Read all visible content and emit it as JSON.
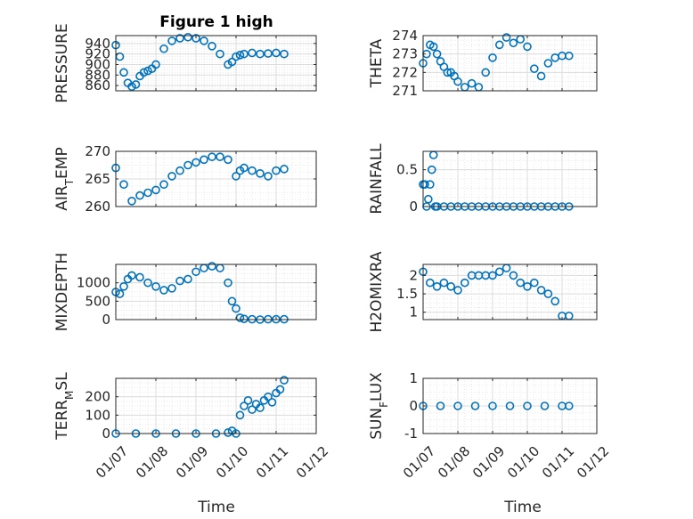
{
  "figure": {
    "title": "Figure 1 high",
    "marker_color": "#0072bd",
    "xlabel": "Time"
  },
  "chart_data": [
    {
      "type": "scatter",
      "ylabel": "PRESSURE",
      "ylim": [
        850,
        955
      ],
      "yticks": [
        860,
        880,
        900,
        920,
        940
      ],
      "xlim": [
        0,
        5
      ],
      "xtick_labels": [
        "01/07",
        "01/08",
        "01/09",
        "01/10",
        "01/11",
        "01/12"
      ],
      "x": [
        0,
        0.1,
        0.2,
        0.3,
        0.4,
        0.5,
        0.6,
        0.7,
        0.8,
        0.9,
        1.0,
        1.2,
        1.4,
        1.6,
        1.8,
        2.0,
        2.2,
        2.4,
        2.6,
        2.8,
        2.9,
        3.0,
        3.1,
        3.2,
        3.4,
        3.6,
        3.8,
        4.0,
        4.2
      ],
      "values": [
        937,
        915,
        885,
        865,
        858,
        862,
        878,
        885,
        888,
        892,
        900,
        930,
        945,
        950,
        952,
        950,
        945,
        935,
        920,
        900,
        905,
        915,
        918,
        920,
        922,
        920,
        921,
        922,
        920
      ]
    },
    {
      "type": "scatter",
      "ylabel": "THETA",
      "ylim": [
        271,
        274
      ],
      "yticks": [
        271,
        272,
        273,
        274
      ],
      "xlim": [
        0,
        5
      ],
      "xtick_labels": [
        "01/07",
        "01/08",
        "01/09",
        "01/10",
        "01/11",
        "01/12"
      ],
      "x": [
        0,
        0.1,
        0.2,
        0.3,
        0.4,
        0.5,
        0.6,
        0.7,
        0.8,
        0.9,
        1.0,
        1.2,
        1.4,
        1.6,
        1.8,
        2.0,
        2.2,
        2.4,
        2.6,
        2.8,
        3.0,
        3.2,
        3.4,
        3.6,
        3.8,
        4.0,
        4.2
      ],
      "values": [
        272.5,
        273.0,
        273.5,
        273.4,
        273.0,
        272.6,
        272.3,
        272.0,
        272.0,
        271.8,
        271.5,
        271.2,
        271.4,
        271.2,
        272.0,
        272.8,
        273.5,
        273.9,
        273.6,
        273.8,
        273.4,
        272.2,
        271.8,
        272.5,
        272.8,
        272.9,
        272.9
      ]
    },
    {
      "type": "scatter",
      "ylabel": "AIR_TEMP",
      "ylim": [
        260,
        270
      ],
      "yticks": [
        260,
        265,
        270
      ],
      "xlim": [
        0,
        5
      ],
      "xtick_labels": [
        "01/07",
        "01/08",
        "01/09",
        "01/10",
        "01/11",
        "01/12"
      ],
      "x": [
        0,
        0.2,
        0.4,
        0.6,
        0.8,
        1.0,
        1.2,
        1.4,
        1.6,
        1.8,
        2.0,
        2.2,
        2.4,
        2.6,
        2.8,
        3.0,
        3.1,
        3.2,
        3.4,
        3.6,
        3.8,
        4.0,
        4.2
      ],
      "values": [
        267,
        264,
        261,
        262,
        262.5,
        263,
        264,
        265.5,
        266.5,
        267.5,
        268,
        268.5,
        269,
        269,
        268.5,
        265.5,
        266.5,
        267,
        266.5,
        266,
        265.5,
        266.5,
        266.8
      ]
    },
    {
      "type": "scatter",
      "ylabel": "RAINFALL",
      "ylim": [
        0,
        0.75
      ],
      "yticks": [
        0,
        0.5
      ],
      "xlim": [
        0,
        5
      ],
      "xtick_labels": [
        "01/07",
        "01/08",
        "01/09",
        "01/10",
        "01/11",
        "01/12"
      ],
      "x": [
        0,
        0.05,
        0.1,
        0.15,
        0.2,
        0.25,
        0.3,
        0.35,
        0.4,
        0.6,
        0.8,
        1.0,
        1.2,
        1.4,
        1.6,
        1.8,
        2.0,
        2.2,
        2.4,
        2.6,
        2.8,
        3.0,
        3.2,
        3.4,
        3.6,
        3.8,
        4.0,
        4.2
      ],
      "values": [
        0.3,
        0.3,
        0.0,
        0.1,
        0.3,
        0.5,
        0.7,
        0.0,
        0.0,
        0,
        0,
        0,
        0,
        0,
        0,
        0,
        0,
        0,
        0,
        0,
        0,
        0,
        0,
        0,
        0,
        0,
        0,
        0
      ]
    },
    {
      "type": "scatter",
      "ylabel": "MIXDEPTH",
      "ylim": [
        0,
        1500
      ],
      "yticks": [
        0,
        500,
        1000
      ],
      "xlim": [
        0,
        5
      ],
      "xtick_labels": [
        "01/07",
        "01/08",
        "01/09",
        "01/10",
        "01/11",
        "01/12"
      ],
      "x": [
        0,
        0.1,
        0.2,
        0.3,
        0.4,
        0.6,
        0.8,
        1.0,
        1.2,
        1.4,
        1.6,
        1.8,
        2.0,
        2.2,
        2.4,
        2.6,
        2.8,
        2.9,
        3.0,
        3.1,
        3.2,
        3.4,
        3.6,
        3.8,
        4.0,
        4.2
      ],
      "values": [
        750,
        700,
        900,
        1100,
        1200,
        1150,
        1000,
        900,
        800,
        850,
        1050,
        1100,
        1300,
        1400,
        1450,
        1400,
        1000,
        500,
        300,
        50,
        20,
        10,
        0,
        10,
        10,
        10
      ]
    },
    {
      "type": "scatter",
      "ylabel": "H2OMIXRA",
      "ylim": [
        0.8,
        2.3
      ],
      "yticks": [
        1,
        1.5,
        2
      ],
      "xlim": [
        0,
        5
      ],
      "xtick_labels": [
        "01/07",
        "01/08",
        "01/09",
        "01/10",
        "01/11",
        "01/12"
      ],
      "x": [
        0,
        0.2,
        0.4,
        0.6,
        0.8,
        1.0,
        1.2,
        1.4,
        1.6,
        1.8,
        2.0,
        2.2,
        2.4,
        2.6,
        2.8,
        3.0,
        3.2,
        3.4,
        3.6,
        3.8,
        4.0,
        4.2
      ],
      "values": [
        2.1,
        1.8,
        1.7,
        1.8,
        1.7,
        1.6,
        1.8,
        2.0,
        2.0,
        2.0,
        2.0,
        2.1,
        2.2,
        2.0,
        1.8,
        1.7,
        1.8,
        1.6,
        1.5,
        1.3,
        0.9,
        0.9
      ]
    },
    {
      "type": "scatter",
      "ylabel": "TERR_MSL",
      "ylim": [
        0,
        300
      ],
      "yticks": [
        0,
        100,
        200
      ],
      "xlim": [
        0,
        5
      ],
      "xtick_labels": [
        "01/07",
        "01/08",
        "01/09",
        "01/10",
        "01/11",
        "01/12"
      ],
      "x": [
        0,
        0.5,
        1.0,
        1.5,
        2.0,
        2.5,
        2.8,
        2.9,
        3.0,
        3.1,
        3.2,
        3.3,
        3.4,
        3.5,
        3.6,
        3.7,
        3.8,
        3.9,
        4.0,
        4.1,
        4.2
      ],
      "values": [
        0,
        0,
        0,
        0,
        0,
        0,
        5,
        15,
        0,
        100,
        150,
        180,
        130,
        160,
        140,
        180,
        200,
        170,
        220,
        240,
        290
      ]
    },
    {
      "type": "scatter",
      "ylabel": "SUN_FLUX",
      "ylim": [
        -1,
        1
      ],
      "yticks": [
        -1,
        0,
        1
      ],
      "xlim": [
        0,
        5
      ],
      "xtick_labels": [
        "01/07",
        "01/08",
        "01/09",
        "01/10",
        "01/11",
        "01/12"
      ],
      "x": [
        0,
        0.5,
        1.0,
        1.5,
        2.0,
        2.5,
        3.0,
        3.5,
        4.0,
        4.2
      ],
      "values": [
        0,
        0,
        0,
        0,
        0,
        0,
        0,
        0,
        0,
        0
      ]
    }
  ]
}
